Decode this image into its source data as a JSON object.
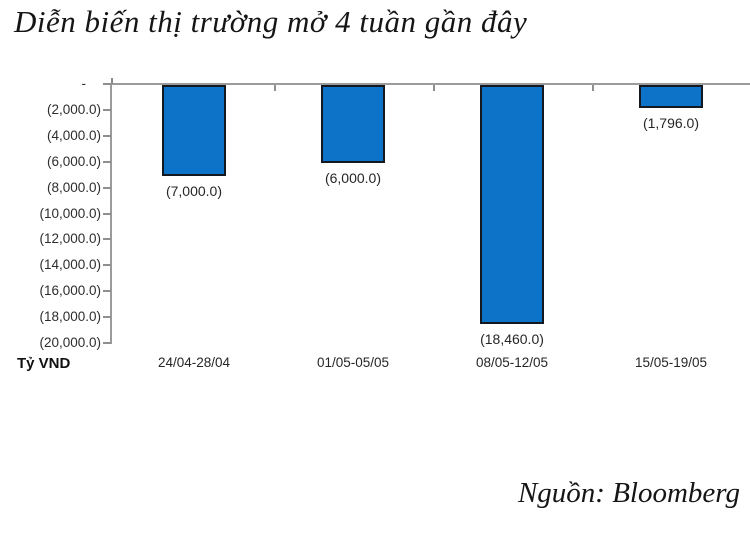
{
  "title": "Diễn biến thị trường mở 4 tuần gần đây",
  "source": "Nguồn: Bloomberg",
  "chart_data": {
    "type": "bar",
    "title": "Diễn biến thị trường mở 4 tuần gần đây",
    "categories": [
      "24/04-28/04",
      "01/05-05/05",
      "08/05-12/05",
      "15/05-19/05"
    ],
    "values": [
      -7000,
      -6000,
      -18460,
      -1796
    ],
    "data_labels": [
      "(7,000.0)",
      "(6,000.0)",
      "(18,460.0)",
      "(1,796.0)"
    ],
    "y_axis_label": "Tỷ VND",
    "y_tick_labels": [
      "-",
      "(2,000.0)",
      "(4,000.0)",
      "(6,000.0)",
      "(8,000.0)",
      "(10,000.0)",
      "(12,000.0)",
      "(14,000.0)",
      "(16,000.0)",
      "(18,000.0)",
      "(20,000.0)"
    ],
    "ylim": [
      -20000,
      0
    ],
    "y_tick_step": 2000,
    "xlabel": "",
    "ylabel": "Tỷ VND",
    "grid": false,
    "legend": "none",
    "bar_color": "#0d73c8",
    "bar_border_color": "#14181f",
    "axis_color": "#9b9b9b",
    "source_caption": "Nguồn: Bloomberg"
  }
}
